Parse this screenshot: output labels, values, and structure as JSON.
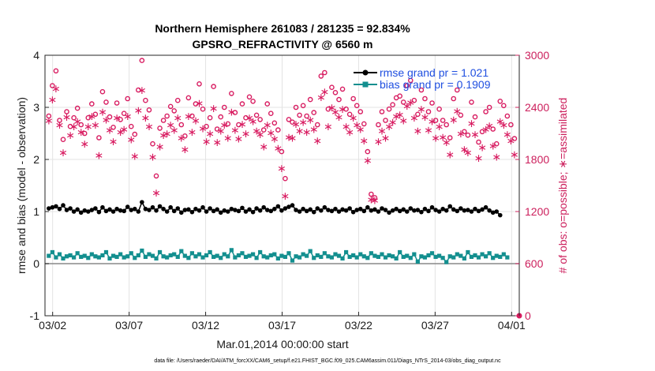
{
  "chart_data": {
    "type": "line",
    "title_line1": "Northern Hemisphere 261083 / 281235 = 92.834%",
    "title_line2": "GPSRO_REFRACTIVITY @ 6560 m",
    "xlabel": "Mar.01,2014 00:00:00 start",
    "ylabel_left": "rmse and bias (model - observation)",
    "ylabel_right": "# of obs: o=possible; ∗=assimilated",
    "footer": "data file: /Users/raeder/DAI/ATM_forcXX/CAM6_setup/f.e21.FHIST_BGC.f09_025.CAM6assim.011/Diags_NTrS_2014-03/obs_diag_output.nc",
    "x_range_days": [
      0.5,
      31.5
    ],
    "ylim_left": [
      -1,
      4
    ],
    "ylim_right": [
      0,
      3000
    ],
    "xticks": [
      {
        "label": "03/02",
        "day": 1
      },
      {
        "label": "03/07",
        "day": 6
      },
      {
        "label": "03/12",
        "day": 11
      },
      {
        "label": "03/17",
        "day": 16
      },
      {
        "label": "03/22",
        "day": 21
      },
      {
        "label": "03/27",
        "day": 26
      },
      {
        "label": "04/01",
        "day": 31
      }
    ],
    "yticks_left": [
      "-1",
      "0",
      "1",
      "2",
      "3",
      "4"
    ],
    "yticks_left_values": [
      -1,
      0,
      1,
      2,
      3,
      4
    ],
    "yticks_right": [
      "0",
      "600",
      "1200",
      "1800",
      "2400",
      "3000"
    ],
    "yticks_right_values": [
      0,
      600,
      1200,
      1800,
      2400,
      3000
    ],
    "grid": true,
    "legend_position": "top-right",
    "colors": {
      "rmse": "#000000",
      "bias": "#138f8f",
      "obs": "#d81b60",
      "zero_line": "#888888"
    },
    "rmse_legend": "rmse grand pr = 1.021",
    "bias_legend": "bias grand pr = 0.1909",
    "rmse": [
      1.06,
      1.08,
      1.1,
      1.05,
      1.12,
      1.03,
      1.06,
      1.0,
      1.04,
      0.98,
      1.02,
      1.0,
      1.03,
      1.06,
      0.99,
      1.08,
      1.01,
      1.04,
      1.0,
      1.05,
      1.02,
      1.01,
      1.09,
      1.03,
      1.05,
      1.0,
      1.18,
      1.05,
      1.03,
      1.08,
      1.02,
      1.1,
      1.05,
      1.0,
      1.08,
      1.01,
      1.06,
      0.98,
      1.03,
      1.04,
      0.99,
      1.05,
      1.02,
      1.08,
      1.0,
      1.06,
      1.01,
      1.04,
      0.98,
      1.02,
      1.0,
      1.05,
      1.03,
      1.01,
      1.07,
      1.0,
      1.04,
      0.99,
      1.06,
      1.02,
      1.08,
      1.03,
      1.01,
      1.05,
      1.1,
      1.02,
      1.06,
      1.09,
      1.12,
      1.03,
      1.0,
      1.05,
      1.01,
      1.04,
      0.99,
      1.06,
      1.02,
      1.08,
      1.03,
      1.01,
      1.05,
      1.0,
      1.04,
      1.02,
      1.06,
      0.99,
      1.03,
      1.05,
      1.01,
      1.08,
      1.02,
      1.04,
      1.0,
      1.06,
      1.03,
      0.98,
      1.02,
      1.05,
      1.01,
      1.04,
      1.0,
      1.06,
      1.02,
      1.03,
      0.99,
      1.05,
      1.01,
      1.08,
      1.03,
      1.0,
      1.05,
      1.02,
      1.1,
      1.04,
      1.01,
      1.06,
      1.02,
      1.03,
      1.0,
      1.05,
      1.01,
      1.04,
      1.08,
      1.02,
      0.98,
      1.0,
      0.93
    ],
    "bias": [
      0.15,
      0.22,
      0.12,
      0.18,
      0.1,
      0.14,
      0.16,
      0.12,
      0.2,
      0.13,
      0.15,
      0.11,
      0.18,
      0.14,
      0.12,
      0.16,
      0.22,
      0.1,
      0.15,
      0.13,
      0.18,
      0.12,
      0.14,
      0.2,
      0.11,
      0.16,
      0.25,
      0.13,
      0.18,
      0.15,
      0.1,
      0.22,
      0.14,
      0.12,
      0.16,
      0.18,
      0.13,
      0.24,
      0.15,
      0.11,
      0.2,
      0.14,
      0.18,
      0.12,
      0.16,
      0.22,
      0.13,
      0.15,
      0.11,
      0.18,
      0.14,
      0.26,
      0.12,
      0.16,
      0.2,
      0.13,
      0.15,
      0.18,
      0.11,
      0.22,
      0.14,
      0.12,
      0.16,
      0.18,
      0.1,
      0.15,
      0.13,
      0.2,
      0.06,
      0.14,
      0.12,
      0.18,
      0.15,
      0.24,
      0.11,
      0.16,
      0.13,
      0.2,
      0.14,
      0.12,
      0.18,
      0.15,
      0.1,
      0.22,
      0.13,
      0.16,
      0.12,
      0.18,
      0.14,
      0.11,
      0.2,
      0.15,
      0.13,
      0.18,
      0.12,
      0.16,
      0.14,
      0.1,
      0.22,
      0.13,
      0.15,
      0.11,
      0.18,
      0.04,
      0.14,
      0.12,
      0.16,
      0.2,
      0.13,
      0.15,
      0.11,
      0.03,
      0.14,
      0.12,
      0.18,
      0.15,
      0.1,
      0.22,
      0.13,
      0.16,
      0.12,
      0.18,
      0.14,
      0.2,
      0.11,
      0.15,
      0.13,
      0.18,
      0.12
    ],
    "obs_possible": [
      2300,
      2650,
      2820,
      2250,
      2030,
      2350,
      2180,
      2280,
      2390,
      2200,
      2100,
      2280,
      2440,
      2320,
      2050,
      2580,
      2460,
      2290,
      2170,
      2450,
      2260,
      2330,
      2500,
      2180,
      2090,
      2600,
      2940,
      2480,
      2370,
      1980,
      1610,
      2160,
      2250,
      2300,
      2410,
      2360,
      2480,
      2200,
      2070,
      2510,
      2300,
      2440,
      2670,
      2380,
      2180,
      2280,
      2640,
      2150,
      2290,
      2400,
      2210,
      2560,
      2340,
      2200,
      2440,
      2280,
      2520,
      2470,
      2310,
      2260,
      2140,
      2440,
      2330,
      2220,
      2140,
      1890,
      1580,
      2260,
      2230,
      2400,
      2310,
      2420,
      2300,
      2490,
      2340,
      2200,
      2760,
      2800,
      2380,
      2630,
      2570,
      2490,
      2610,
      2380,
      2320,
      2500,
      2420,
      2350,
      2210,
      1890,
      1400,
      1360,
      2200,
      2350,
      2250,
      2380,
      2430,
      2510,
      2530,
      2460,
      2650,
      2710,
      2480,
      2320,
      2600,
      2500,
      2350,
      2450,
      2250,
      2380,
      2250,
      2200,
      2050,
      2500,
      2600,
      2310,
      2120,
      2080,
      2460,
      2290,
      2000,
      2120,
      2350,
      2400,
      2150,
      1980,
      2470,
      2420,
      2300,
      2200,
      2040
    ],
    "obs_assimilated": [
      2250,
      2490,
      2620,
      2200,
      1880,
      2290,
      2080,
      2180,
      2240,
      2120,
      1980,
      2180,
      2300,
      2200,
      1850,
      2350,
      2260,
      2140,
      2010,
      2280,
      2120,
      2150,
      2300,
      2030,
      1840,
      2370,
      2600,
      2280,
      2180,
      1830,
      1420,
      1950,
      2080,
      2100,
      2200,
      2140,
      2280,
      2050,
      1920,
      2300,
      2120,
      2250,
      2450,
      2160,
      2010,
      2100,
      2390,
      2000,
      2130,
      2200,
      2050,
      2350,
      2140,
      2040,
      2210,
      2100,
      2280,
      2240,
      2130,
      2090,
      1950,
      2200,
      2110,
      2040,
      1930,
      1700,
      1380,
      2060,
      2050,
      2210,
      2130,
      2230,
      2120,
      2260,
      2150,
      2020,
      2520,
      2580,
      2180,
      2400,
      2350,
      2290,
      2380,
      2180,
      2120,
      2280,
      2200,
      2150,
      2020,
      1790,
      1340,
      1330,
      2010,
      2130,
      2050,
      2180,
      2230,
      2300,
      2320,
      2250,
      2420,
      2460,
      2280,
      2130,
      2380,
      2290,
      2140,
      2240,
      2050,
      2180,
      2060,
      2000,
      1860,
      2260,
      2360,
      2100,
      1920,
      1880,
      2220,
      2090,
      1820,
      1940,
      2150,
      2190,
      1960,
      1830,
      2240,
      2200,
      2090,
      2020,
      1860
    ]
  }
}
